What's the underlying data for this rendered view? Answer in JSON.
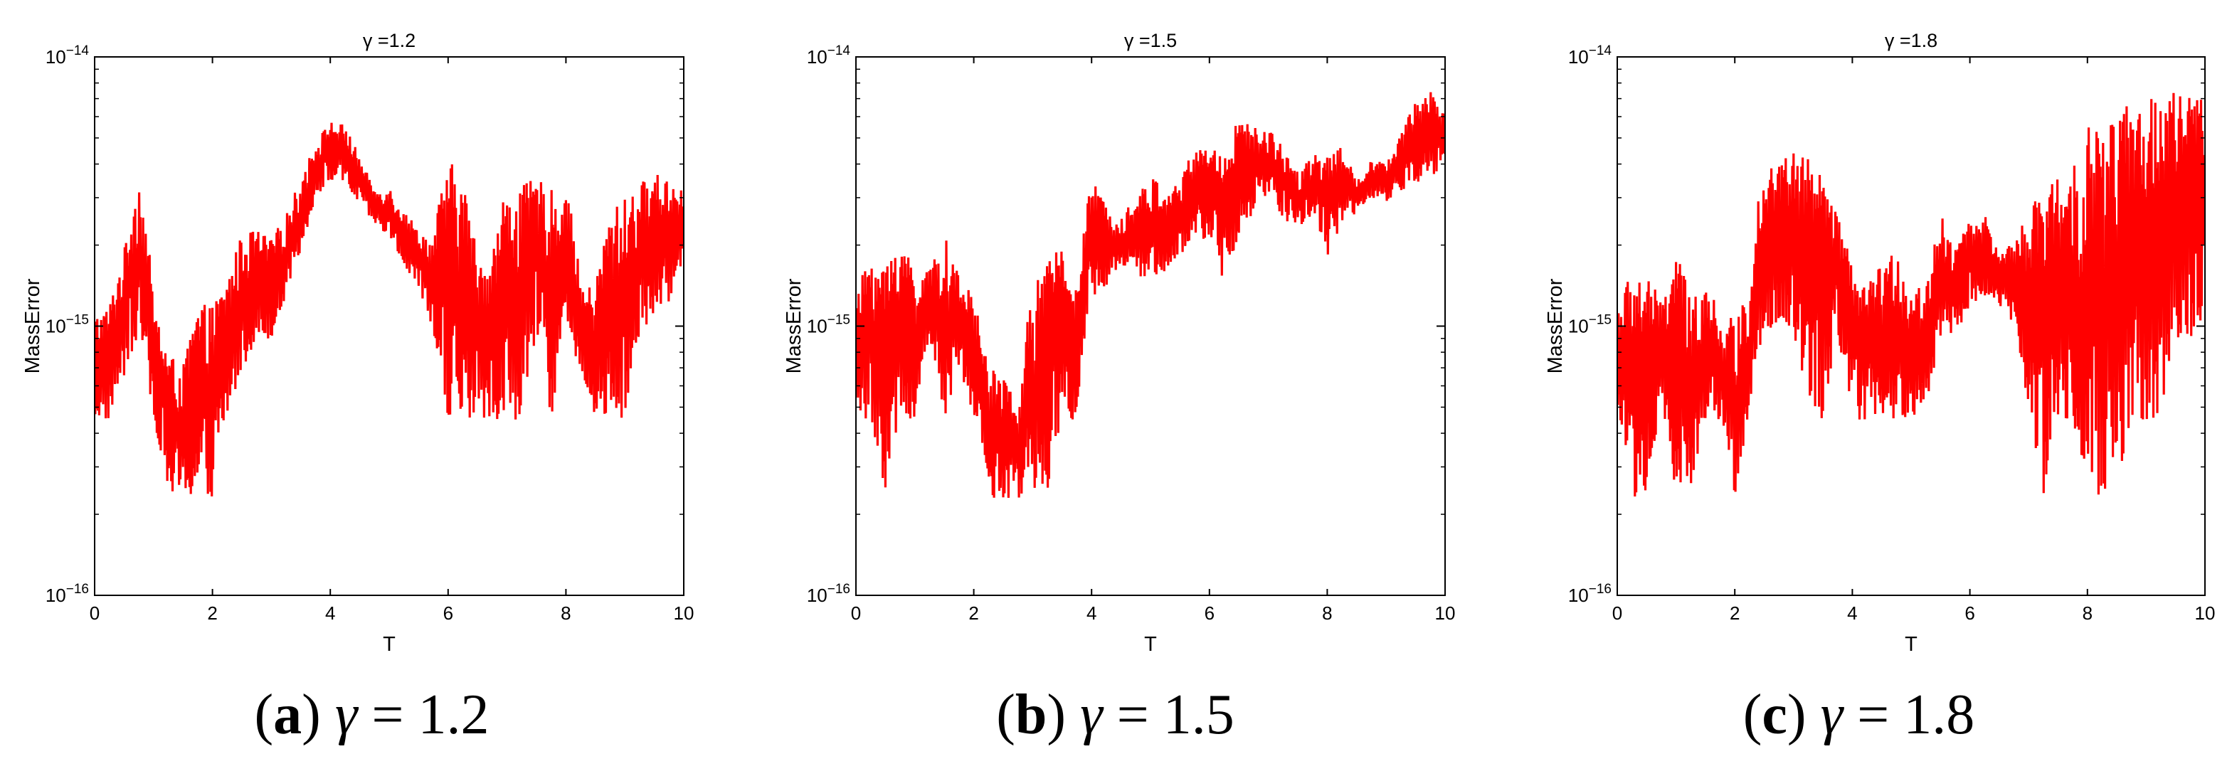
{
  "charts": [
    {
      "type": "line",
      "title": "γ =1.2",
      "caption": {
        "letter": "a",
        "symbol": "γ",
        "eq": "= 1.2"
      },
      "xlabel": "T",
      "ylabel": "MassError",
      "xlim": [
        0,
        10
      ],
      "ylim": [
        1e-16,
        1e-14
      ],
      "yscale": "log",
      "xticks": [
        "0",
        "2",
        "4",
        "6",
        "8",
        "10"
      ],
      "yticks": [
        {
          "base": "10",
          "exp": "−16"
        },
        {
          "base": "10",
          "exp": "−15"
        },
        {
          "base": "10",
          "exp": "−14"
        }
      ],
      "line_color": "#ff0000",
      "grid": false,
      "series": [
        {
          "x": [
            0,
            0.25,
            0.5,
            0.75,
            1,
            1.25,
            1.5,
            1.75,
            2,
            2.25,
            2.5,
            2.75,
            3,
            3.25,
            3.5,
            3.75,
            4,
            4.25,
            4.5,
            4.75,
            5,
            5.25,
            5.5,
            5.75,
            6,
            6.25,
            6.5,
            6.75,
            7,
            7.25,
            7.5,
            7.75,
            8,
            8.25,
            8.5,
            8.75,
            9,
            9.25,
            9.5,
            9.75,
            10
          ],
          "y_top": [
            1.1e-15,
            1.2e-15,
            1.9e-15,
            3.6e-15,
            1.2e-15,
            8e-16,
            7e-16,
            1.2e-15,
            1.2e-15,
            1.5e-15,
            2.2e-15,
            2.3e-15,
            2.1e-15,
            2.6e-15,
            3.5e-15,
            4.8e-15,
            5.8e-15,
            5.6e-15,
            4.2e-15,
            3.2e-15,
            3.3e-15,
            2.7e-15,
            2.3e-15,
            2.1e-15,
            4.2e-15,
            3.5e-15,
            1.8e-15,
            1.9e-15,
            3.4e-15,
            3.3e-15,
            3.6e-15,
            3.2e-15,
            3.3e-15,
            1.4e-15,
            1.4e-15,
            2.7e-15,
            3e-15,
            3.4e-15,
            3.7e-15,
            3.6e-15,
            3.2e-15
          ],
          "y_bottom": [
            4.5e-16,
            4.5e-16,
            6.5e-16,
            9e-16,
            4.5e-16,
            2.3e-16,
            2.3e-16,
            2.3e-16,
            2.3e-16,
            4.5e-16,
            6.8e-16,
            9e-16,
            9e-16,
            1.3e-15,
            1.8e-15,
            3e-15,
            3.5e-15,
            3.3e-15,
            2.8e-15,
            2.4e-15,
            2.1e-15,
            1.7e-15,
            1.3e-15,
            9e-16,
            4.5e-16,
            4.5e-16,
            4.5e-16,
            4.5e-16,
            4.5e-16,
            4.5e-16,
            9e-16,
            4.5e-16,
            9e-16,
            6.8e-16,
            4.5e-16,
            4.5e-16,
            4.5e-16,
            9e-16,
            1.1e-15,
            1.2e-15,
            1.8e-15
          ]
        }
      ]
    },
    {
      "type": "line",
      "title": "γ =1.5",
      "caption": {
        "letter": "b",
        "symbol": "γ",
        "eq": "= 1.5"
      },
      "xlabel": "T",
      "ylabel": "MassError",
      "xlim": [
        0,
        10
      ],
      "ylim": [
        1e-16,
        1e-14
      ],
      "yscale": "log",
      "xticks": [
        "0",
        "2",
        "4",
        "6",
        "8",
        "10"
      ],
      "yticks": [
        {
          "base": "10",
          "exp": "−16"
        },
        {
          "base": "10",
          "exp": "−15"
        },
        {
          "base": "10",
          "exp": "−14"
        }
      ],
      "line_color": "#ff0000",
      "grid": false,
      "series": [
        {
          "x": [
            0,
            0.25,
            0.5,
            0.75,
            1,
            1.25,
            1.5,
            1.75,
            2,
            2.25,
            2.5,
            2.75,
            3,
            3.25,
            3.5,
            3.75,
            4,
            4.25,
            4.5,
            4.75,
            5,
            5.25,
            5.5,
            5.75,
            6,
            6.25,
            6.5,
            6.75,
            7,
            7.25,
            7.5,
            7.75,
            8,
            8.25,
            8.5,
            8.75,
            9,
            9.25,
            9.5,
            9.75,
            10
          ],
          "y_top": [
            1.2e-15,
            2e-15,
            1.7e-15,
            2.3e-15,
            1.6e-15,
            1.6e-15,
            2.2e-15,
            1.5e-15,
            1.3e-15,
            6.8e-16,
            7e-16,
            4.5e-16,
            1.4e-15,
            1.7e-15,
            2.3e-15,
            1.3e-15,
            3.5e-15,
            2.8e-15,
            2.7e-15,
            3e-15,
            3.6e-15,
            3.3e-15,
            3.4e-15,
            4.8e-15,
            4.6e-15,
            4.8e-15,
            5.9e-15,
            5.5e-15,
            5.4e-15,
            4.7e-15,
            3.8e-15,
            4.3e-15,
            4.5e-15,
            4.6e-15,
            3.5e-15,
            4.2e-15,
            4e-15,
            5.2e-15,
            6.8e-15,
            7.5e-15,
            6.3e-15
          ],
          "y_bottom": [
            4.5e-16,
            4.5e-16,
            2.3e-16,
            4.5e-16,
            4.5e-16,
            9e-16,
            4.5e-16,
            6.8e-16,
            4.5e-16,
            2.3e-16,
            2.3e-16,
            2.3e-16,
            2.3e-16,
            2.3e-16,
            4.5e-16,
            4.5e-16,
            1.2e-15,
            1.4e-15,
            1.5e-15,
            1.5e-15,
            1.5e-15,
            1.6e-15,
            1.8e-15,
            1.9e-15,
            2.2e-15,
            1.3e-15,
            2.2e-15,
            2.6e-15,
            3.1e-15,
            2.5e-15,
            2.3e-15,
            2.6e-15,
            1.8e-15,
            2.4e-15,
            2.6e-15,
            3e-15,
            2.9e-15,
            3.1e-15,
            3.3e-15,
            3.6e-15,
            3.9e-15
          ]
        }
      ]
    },
    {
      "type": "line",
      "title": "γ =1.8",
      "caption": {
        "letter": "c",
        "symbol": "γ",
        "eq": "= 1.8"
      },
      "xlabel": "T",
      "ylabel": "MassError",
      "xlim": [
        0,
        10
      ],
      "ylim": [
        1e-16,
        1e-14
      ],
      "yscale": "log",
      "xticks": [
        "0",
        "2",
        "4",
        "6",
        "8",
        "10"
      ],
      "yticks": [
        {
          "base": "10",
          "exp": "−16"
        },
        {
          "base": "10",
          "exp": "−15"
        },
        {
          "base": "10",
          "exp": "−14"
        }
      ],
      "line_color": "#ff0000",
      "grid": false,
      "series": [
        {
          "x": [
            0,
            0.25,
            0.5,
            0.75,
            1,
            1.25,
            1.5,
            1.75,
            2,
            2.25,
            2.5,
            2.75,
            3,
            3.25,
            3.5,
            3.75,
            4,
            4.25,
            4.5,
            4.75,
            5,
            5.25,
            5.5,
            5.75,
            6,
            6.25,
            6.5,
            6.75,
            7,
            7.25,
            7.5,
            7.75,
            8,
            8.25,
            8.5,
            8.75,
            9,
            9.25,
            9.5,
            9.75,
            10
          ],
          "y_top": [
            1.2e-15,
            1.6e-15,
            1.6e-15,
            1.2e-15,
            2e-15,
            1.2e-15,
            1.6e-15,
            1e-15,
            1.1e-15,
            1.3e-15,
            4.3e-15,
            4.2e-15,
            4.5e-15,
            4.3e-15,
            3.6e-15,
            2.6e-15,
            1.6e-15,
            1.4e-15,
            1.7e-15,
            1.9e-15,
            1.4e-15,
            1.4e-15,
            2.6e-15,
            2e-15,
            2.5e-15,
            2.6e-15,
            1.8e-15,
            2.1e-15,
            2.6e-15,
            3.4e-15,
            3.7e-15,
            4e-15,
            5.5e-15,
            6e-15,
            6.3e-15,
            6.8e-15,
            7e-15,
            7.2e-15,
            7.4e-15,
            7.3e-15,
            7.5e-15
          ],
          "y_bottom": [
            4.5e-16,
            2.3e-16,
            2.3e-16,
            4.5e-16,
            2.3e-16,
            2.3e-16,
            4.5e-16,
            4.5e-16,
            2.3e-16,
            4.5e-16,
            9e-16,
            9e-16,
            9e-16,
            4.5e-16,
            4.5e-16,
            9e-16,
            4.5e-16,
            4.5e-16,
            4.5e-16,
            4.5e-16,
            4.5e-16,
            4.5e-16,
            9e-16,
            9e-16,
            1.2e-15,
            1.3e-15,
            1.2e-15,
            1e-15,
            4.5e-16,
            2.3e-16,
            4.5e-16,
            4.5e-16,
            2.3e-16,
            2.3e-16,
            2.3e-16,
            4.5e-16,
            4.5e-16,
            4.5e-16,
            9e-16,
            9e-16,
            1.1e-15
          ]
        }
      ]
    }
  ]
}
